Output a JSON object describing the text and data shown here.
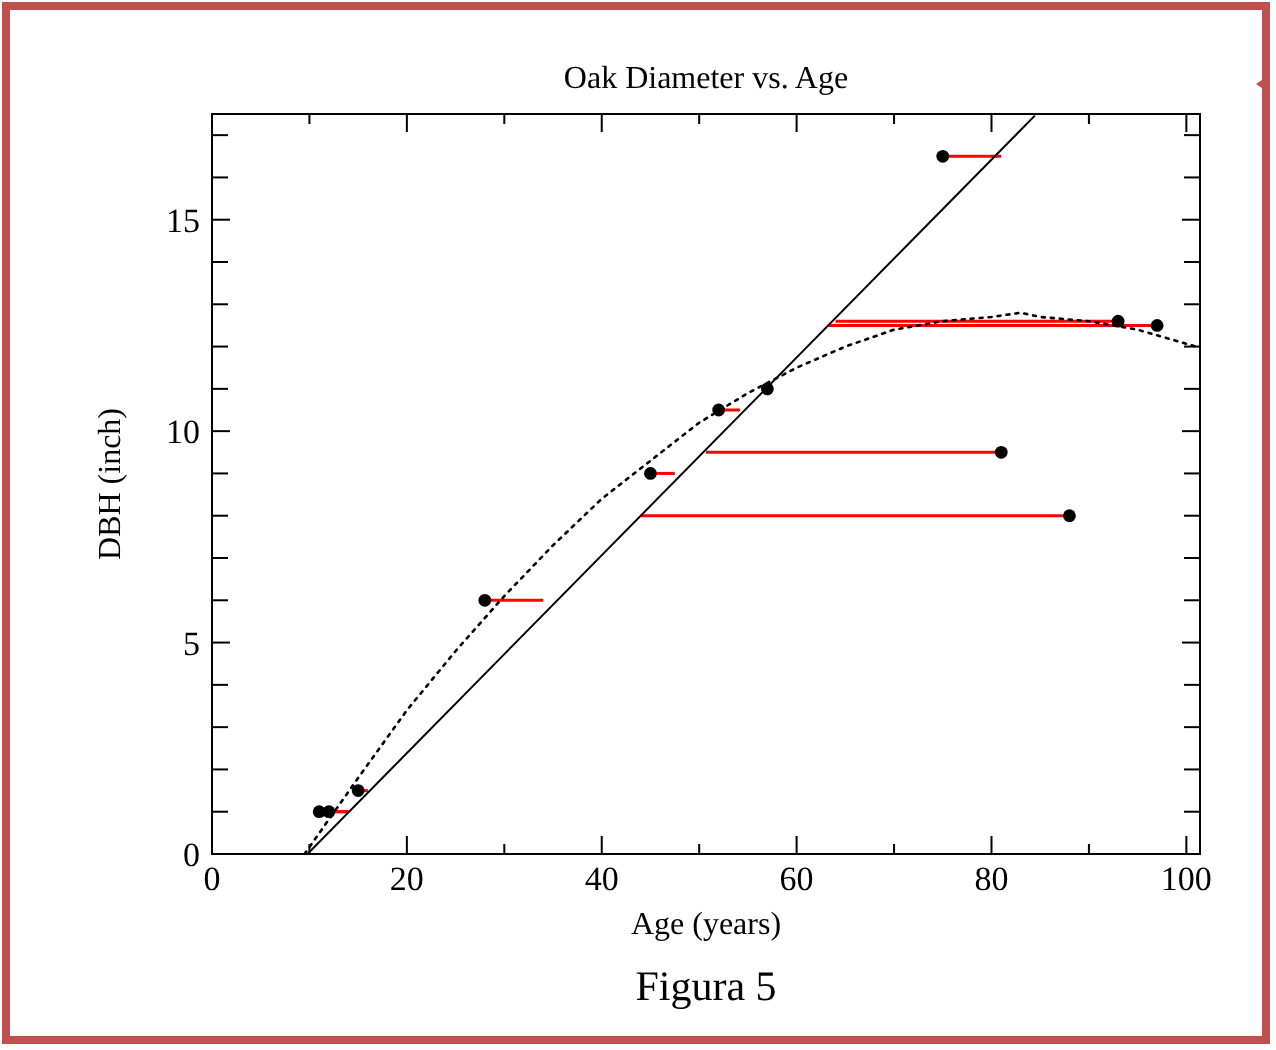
{
  "chart_data": {
    "type": "scatter",
    "title": "Oak Diameter vs. Age",
    "xlabel": "Age (years)",
    "ylabel": "DBH (inch)",
    "annotations": [
      "Figura 5"
    ],
    "xlim": [
      0,
      101.4
    ],
    "ylim": [
      0,
      17.5
    ],
    "xticks": [
      0,
      {
        "value": 10,
        "label": null
      },
      20,
      {
        "value": 30,
        "label": null
      },
      40,
      {
        "value": 50,
        "label": null
      },
      60,
      {
        "value": 70,
        "label": null
      },
      80,
      {
        "value": 90,
        "label": null
      },
      100
    ],
    "yticks": [
      0,
      {
        "value": 1,
        "label": null
      },
      {
        "value": 2,
        "label": null
      },
      {
        "value": 3,
        "label": null
      },
      {
        "value": 4,
        "label": null
      },
      5,
      {
        "value": 6,
        "label": null
      },
      {
        "value": 7,
        "label": null
      },
      {
        "value": 8,
        "label": null
      },
      {
        "value": 9,
        "label": null
      },
      10,
      {
        "value": 11,
        "label": null
      },
      {
        "value": 12,
        "label": null
      },
      {
        "value": 13,
        "label": null
      },
      {
        "value": 14,
        "label": null
      },
      15,
      {
        "value": 16,
        "label": null
      },
      {
        "value": 17,
        "label": null
      }
    ],
    "grid": false,
    "series": [
      {
        "color": "#000000",
        "marker": "circle",
        "x": [
          11,
          12,
          15,
          28,
          45,
          52,
          57,
          75,
          93,
          97,
          81,
          88
        ],
        "values": [
          1,
          1,
          1.5,
          6,
          9,
          10.5,
          11,
          16.5,
          12.6,
          12.5,
          9.5,
          8
        ],
        "xerrors": [
          [
            11,
            14
          ],
          [
            12,
            14
          ],
          [
            15,
            16
          ],
          [
            28,
            34
          ],
          [
            45,
            47.5
          ],
          [
            52,
            54.2
          ],
          null,
          [
            75,
            81
          ],
          [
            64,
            93
          ],
          [
            63.2,
            97
          ],
          [
            50.7,
            81
          ],
          [
            44,
            88
          ]
        ]
      },
      {
        "type": "line",
        "color": "#000000",
        "line_style": "solid",
        "x": [
          9.8,
          84.4
        ],
        "values": [
          0,
          17.45
        ]
      },
      {
        "type": "line",
        "color": "#000000",
        "line_style": "dotted",
        "x": [
          9.5,
          15,
          20,
          25,
          30,
          35,
          40,
          45,
          50,
          55,
          60,
          65,
          70,
          75,
          80,
          83,
          85,
          90,
          95,
          101
        ],
        "values": [
          0,
          1.8,
          3.4,
          4.8,
          6.1,
          7.3,
          8.4,
          9.3,
          10.2,
          10.9,
          11.5,
          12,
          12.4,
          12.6,
          12.7,
          12.8,
          12.7,
          12.6,
          12.4,
          12
        ]
      }
    ]
  }
}
